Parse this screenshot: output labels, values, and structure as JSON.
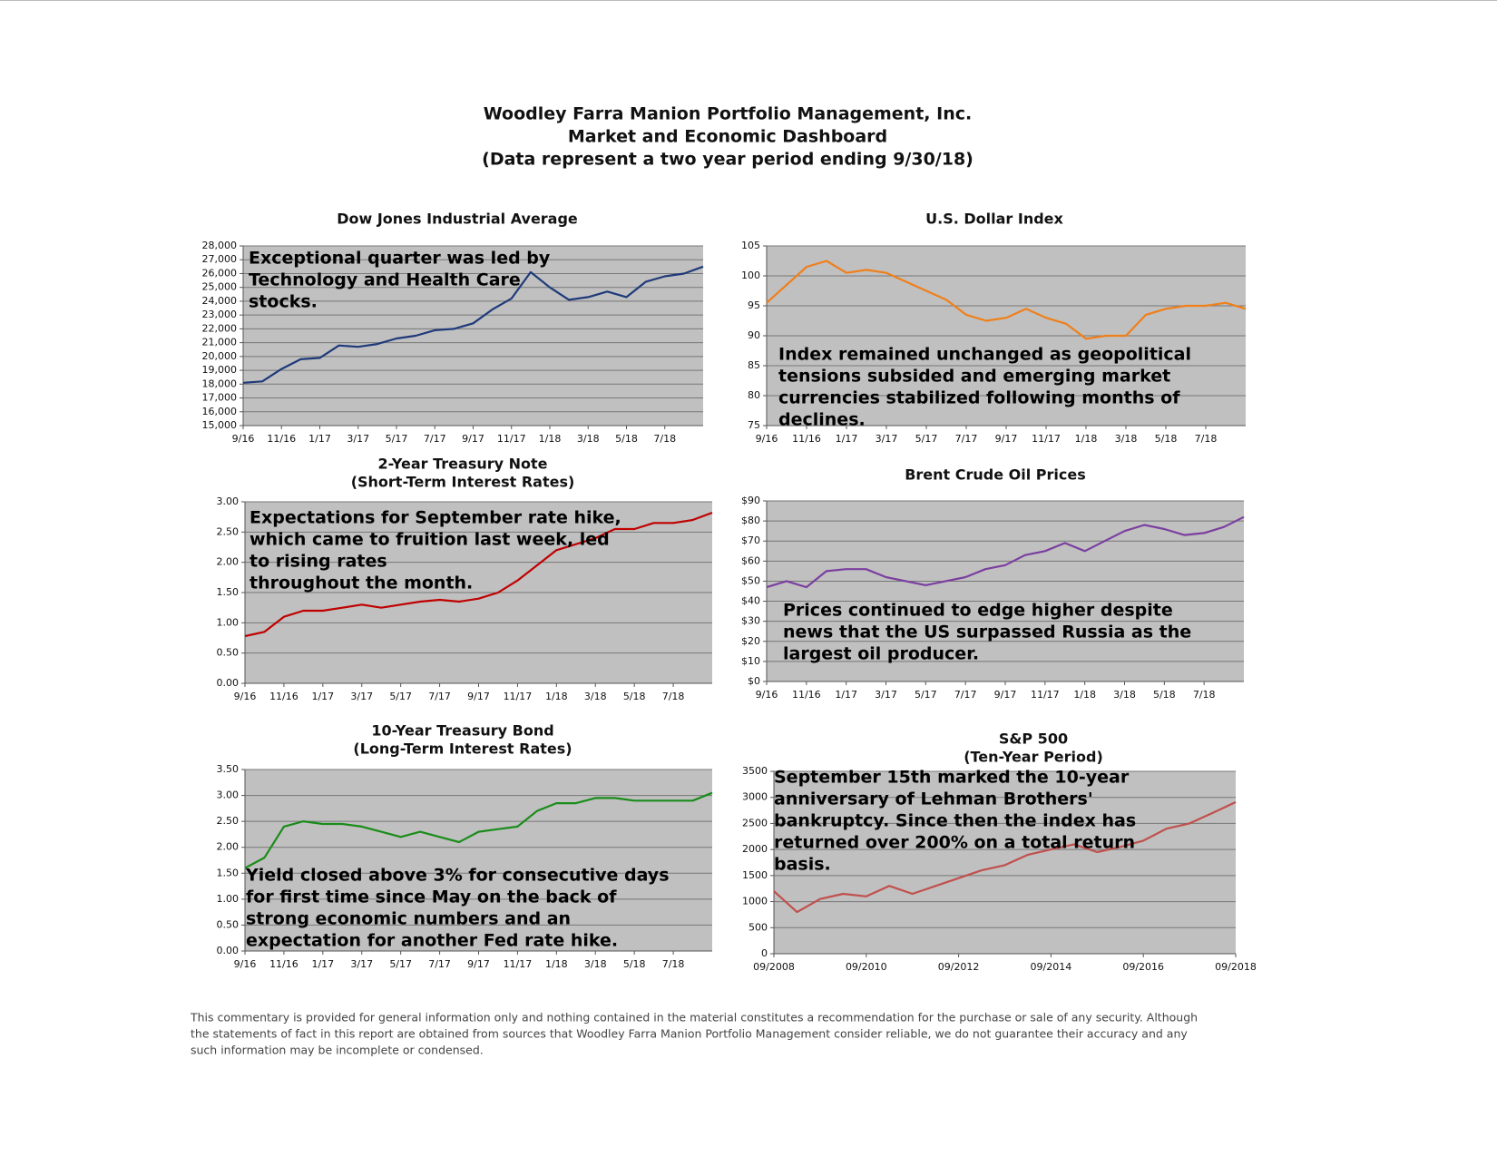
{
  "header": {
    "lines": [
      "Woodley Farra Manion Portfolio Management, Inc.",
      "Market and Economic Dashboard",
      "(Data represent a two year period ending 9/30/18)"
    ]
  },
  "chart_data": [
    {
      "type": "line",
      "title": "Dow Jones Industrial Average",
      "x": [
        "9/16",
        null,
        "11/16",
        null,
        "1/17",
        null,
        "3/17",
        null,
        "5/17",
        null,
        "7/17",
        null,
        "9/17",
        null,
        "11/17",
        null,
        "1/18",
        null,
        "3/18",
        null,
        "5/18",
        null,
        "7/18",
        null,
        null
      ],
      "series": [
        {
          "color": "#1f3a7a",
          "values": [
            18100,
            18200,
            19100,
            19800,
            19900,
            20800,
            20700,
            20900,
            21300,
            21500,
            21900,
            22000,
            22400,
            23400,
            24200,
            26100,
            25000,
            24100,
            24300,
            24700,
            24300,
            25400,
            25800,
            26000,
            26500
          ]
        }
      ],
      "ylim": [
        15000,
        28000
      ],
      "yticks": [
        {
          "value": 15000,
          "label": "15,000"
        },
        {
          "value": 16000,
          "label": "16,000"
        },
        {
          "value": 17000,
          "label": "17,000"
        },
        {
          "value": 18000,
          "label": "18,000"
        },
        {
          "value": 19000,
          "label": "19,000"
        },
        {
          "value": 20000,
          "label": "20,000"
        },
        {
          "value": 21000,
          "label": "21,000"
        },
        {
          "value": 22000,
          "label": "22,000"
        },
        {
          "value": 23000,
          "label": "23,000"
        },
        {
          "value": 24000,
          "label": "24,000"
        },
        {
          "value": 25000,
          "label": "25,000"
        },
        {
          "value": 26000,
          "label": "26,000"
        },
        {
          "value": 27000,
          "label": "27,000"
        },
        {
          "value": 28000,
          "label": "28,000"
        }
      ],
      "grid": true,
      "annotation": [
        "Exceptional quarter was led by",
        "Technology and Health Care",
        "stocks."
      ]
    },
    {
      "type": "line",
      "title": "U.S. Dollar Index",
      "x": [
        "9/16",
        null,
        "11/16",
        null,
        "1/17",
        null,
        "3/17",
        null,
        "5/17",
        null,
        "7/17",
        null,
        "9/17",
        null,
        "11/17",
        null,
        "1/18",
        null,
        "3/18",
        null,
        "5/18",
        null,
        "7/18",
        null,
        null
      ],
      "series": [
        {
          "color": "#f07f1a",
          "values": [
            95.5,
            98.5,
            101.5,
            102.5,
            100.5,
            101,
            100.5,
            99,
            97.5,
            96,
            93.5,
            92.5,
            93,
            94.5,
            93,
            92,
            89.5,
            90,
            90,
            93.5,
            94.5,
            95,
            95,
            95.5,
            94.5
          ]
        }
      ],
      "ylim": [
        75,
        105
      ],
      "yticks": [
        75,
        80,
        85,
        90,
        95,
        100,
        105
      ],
      "grid": true,
      "annotation": [
        "Index remained unchanged as geopolitical",
        "tensions subsided and emerging market",
        "currencies stabilized following months of",
        "declines."
      ]
    },
    {
      "type": "line",
      "title": "2-Year Treasury Note",
      "subtitle": "(Short-Term Interest Rates)",
      "x": [
        "9/16",
        null,
        "11/16",
        null,
        "1/17",
        null,
        "3/17",
        null,
        "5/17",
        null,
        "7/17",
        null,
        "9/17",
        null,
        "11/17",
        null,
        "1/18",
        null,
        "3/18",
        null,
        "5/18",
        null,
        "7/18",
        null,
        null
      ],
      "series": [
        {
          "color": "#c00000",
          "values": [
            0.78,
            0.85,
            1.1,
            1.2,
            1.2,
            1.25,
            1.3,
            1.25,
            1.3,
            1.35,
            1.38,
            1.35,
            1.4,
            1.5,
            1.7,
            1.95,
            2.2,
            2.3,
            2.4,
            2.55,
            2.55,
            2.65,
            2.65,
            2.7,
            2.82
          ]
        }
      ],
      "ylim": [
        0,
        3
      ],
      "yticks": [
        {
          "value": 0,
          "label": "0.00"
        },
        {
          "value": 0.5,
          "label": "0.50"
        },
        {
          "value": 1,
          "label": "1.00"
        },
        {
          "value": 1.5,
          "label": "1.50"
        },
        {
          "value": 2,
          "label": "2.00"
        },
        {
          "value": 2.5,
          "label": "2.50"
        },
        {
          "value": 3,
          "label": "3.00"
        }
      ],
      "grid": true,
      "annotation": [
        "Expectations for September rate hike,",
        "which came to fruition last week, led",
        "to rising rates",
        "throughout the month."
      ]
    },
    {
      "type": "line",
      "title": "Brent Crude Oil Prices",
      "x": [
        "9/16",
        null,
        "11/16",
        null,
        "1/17",
        null,
        "3/17",
        null,
        "5/17",
        null,
        "7/17",
        null,
        "9/17",
        null,
        "11/17",
        null,
        "1/18",
        null,
        "3/18",
        null,
        "5/18",
        null,
        "7/18",
        null,
        null
      ],
      "series": [
        {
          "color": "#7b3fa0",
          "values": [
            47,
            50,
            47,
            55,
            56,
            56,
            52,
            50,
            48,
            50,
            52,
            56,
            58,
            63,
            65,
            69,
            65,
            70,
            75,
            78,
            76,
            73,
            74,
            77,
            82
          ]
        }
      ],
      "ylim": [
        0,
        90
      ],
      "yticks": [
        {
          "value": 0,
          "label": "$0"
        },
        {
          "value": 10,
          "label": "$10"
        },
        {
          "value": 20,
          "label": "$20"
        },
        {
          "value": 30,
          "label": "$30"
        },
        {
          "value": 40,
          "label": "$40"
        },
        {
          "value": 50,
          "label": "$50"
        },
        {
          "value": 60,
          "label": "$60"
        },
        {
          "value": 70,
          "label": "$70"
        },
        {
          "value": 80,
          "label": "$80"
        },
        {
          "value": 90,
          "label": "$90"
        }
      ],
      "grid": true,
      "annotation": [
        "Prices continued to edge higher despite",
        "news that the US surpassed Russia as the",
        "largest oil producer."
      ]
    },
    {
      "type": "line",
      "title": "10-Year Treasury Bond",
      "subtitle": "(Long-Term Interest Rates)",
      "x": [
        "9/16",
        null,
        "11/16",
        null,
        "1/17",
        null,
        "3/17",
        null,
        "5/17",
        null,
        "7/17",
        null,
        "9/17",
        null,
        "11/17",
        null,
        "1/18",
        null,
        "3/18",
        null,
        "5/18",
        null,
        "7/18",
        null,
        null
      ],
      "series": [
        {
          "color": "#1a8c1a",
          "values": [
            1.6,
            1.8,
            2.4,
            2.5,
            2.45,
            2.45,
            2.4,
            2.3,
            2.2,
            2.3,
            2.2,
            2.1,
            2.3,
            2.35,
            2.4,
            2.7,
            2.85,
            2.85,
            2.95,
            2.95,
            2.9,
            2.9,
            2.9,
            2.9,
            3.05
          ]
        }
      ],
      "ylim": [
        0,
        3.5
      ],
      "yticks": [
        {
          "value": 0,
          "label": "0.00"
        },
        {
          "value": 0.5,
          "label": "0.50"
        },
        {
          "value": 1,
          "label": "1.00"
        },
        {
          "value": 1.5,
          "label": "1.50"
        },
        {
          "value": 2,
          "label": "2.00"
        },
        {
          "value": 2.5,
          "label": "2.50"
        },
        {
          "value": 3,
          "label": "3.00"
        },
        {
          "value": 3.5,
          "label": "3.50"
        }
      ],
      "grid": true,
      "annotation": [
        "Yield closed above 3% for consecutive days",
        "for first time since May on the back of",
        "strong economic numbers and an",
        "expectation for another Fed rate hike."
      ]
    },
    {
      "type": "line",
      "title": "S&P 500",
      "subtitle": "(Ten-Year Period)",
      "x": [
        "09/2008",
        null,
        null,
        null,
        "09/2010",
        null,
        null,
        null,
        "09/2012",
        null,
        null,
        null,
        "09/2014",
        null,
        null,
        null,
        "09/2016",
        null,
        null,
        null,
        "09/2018"
      ],
      "series": [
        {
          "color": "#c0504d",
          "values": [
            1200,
            800,
            1050,
            1150,
            1100,
            1300,
            1150,
            1300,
            1450,
            1600,
            1700,
            1900,
            2000,
            2100,
            1950,
            2050,
            2170,
            2400,
            2500,
            2700,
            2910
          ]
        }
      ],
      "ylim": [
        0,
        3500
      ],
      "yticks": [
        0,
        500,
        1000,
        1500,
        2000,
        2500,
        3000,
        3500
      ],
      "grid": true,
      "annotation": [
        "September 15th marked the 10-year",
        "anniversary of Lehman Brothers'",
        "bankruptcy. Since then the index has",
        "returned over 200% on a total return",
        "basis."
      ]
    }
  ],
  "footer": {
    "lines": [
      "This commentary is provided for general information only and nothing contained in the material constitutes a recommendation for the purchase or sale of any security. Although",
      "the statements of fact in this report are obtained from sources that Woodley Farra Manion Portfolio Management consider reliable, we do not guarantee their accuracy and any",
      "such information may be incomplete or condensed."
    ]
  }
}
